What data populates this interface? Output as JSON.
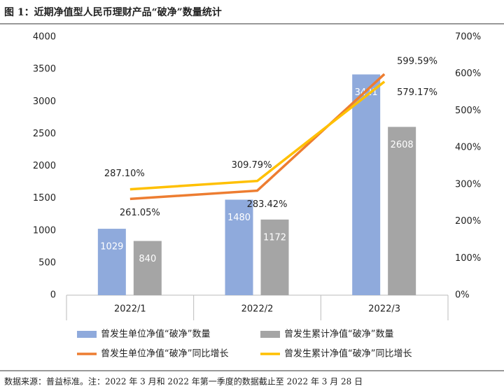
{
  "chart_data": {
    "type": "bar",
    "title": "图 1：近期净值型人民币理财产品“破净”数量统计",
    "categories": [
      "2022/1",
      "2022/2",
      "2022/3"
    ],
    "series": [
      {
        "name": "曾发生单位净值“破净”数量",
        "type": "bar",
        "color": "#8faadc",
        "values": [
          1029,
          1480,
          3421
        ]
      },
      {
        "name": "曾发生累计净值“破净”数量",
        "type": "bar",
        "color": "#a5a5a5",
        "values": [
          840,
          1172,
          2608
        ]
      },
      {
        "name": "曾发生单位净值“破净”同比增长",
        "type": "line",
        "axis": "y2",
        "color": "#ed7d31",
        "values": [
          261.05,
          283.42,
          599.59
        ],
        "value_labels": [
          "261.05%",
          "283.42%",
          "599.59%"
        ]
      },
      {
        "name": "曾发生累计净值“破净”同比增长",
        "type": "line",
        "axis": "y2",
        "color": "#ffc000",
        "values": [
          287.1,
          309.79,
          579.17
        ],
        "value_labels": [
          "287.10%",
          "309.79%",
          "579.17%"
        ]
      }
    ],
    "ylim": [
      0,
      4000
    ],
    "yticks": [
      0,
      500,
      1000,
      1500,
      2000,
      2500,
      3000,
      3500,
      4000
    ],
    "y2lim": [
      0,
      700
    ],
    "y2ticks": [
      {
        "value": 0,
        "label": "0%"
      },
      {
        "value": 100,
        "label": "100%"
      },
      {
        "value": 200,
        "label": "200%"
      },
      {
        "value": 300,
        "label": "300%"
      },
      {
        "value": 400,
        "label": "400%"
      },
      {
        "value": 500,
        "label": "500%"
      },
      {
        "value": 600,
        "label": "600%"
      },
      {
        "value": 700,
        "label": "700%"
      }
    ],
    "grid": false
  },
  "source": "数据来源：普益标准。注：2022 年 3 月和 2022 年第一季度的数据截止至 2022 年 3 月 28 日"
}
